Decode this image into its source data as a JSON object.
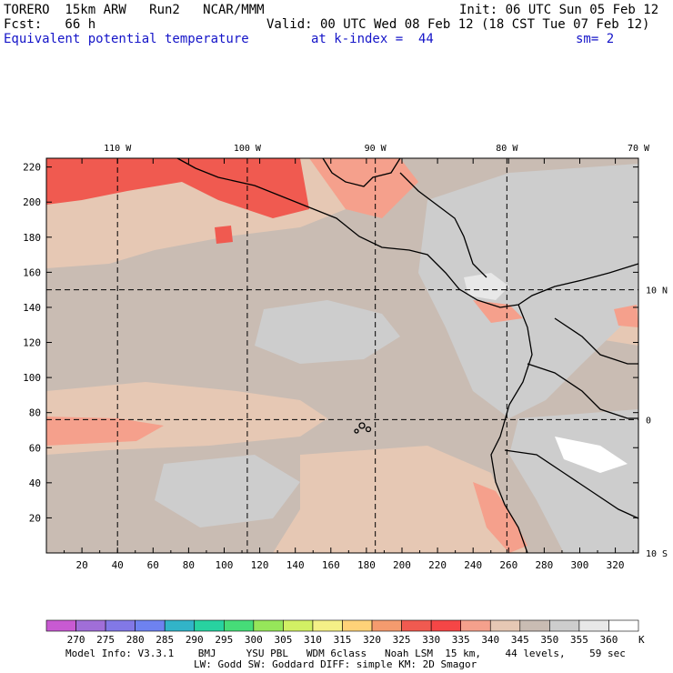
{
  "header": {
    "model_line": "TORERO  15km ARW   Run2   NCAR/MMM",
    "init_line": "Init: 06 UTC Sun 05 Feb 12",
    "fcst_line": "Fcst:   66 h",
    "valid_line": "Valid: 00 UTC Wed 08 Feb 12 (18 CST Tue 07 Feb 12)",
    "field_title": "Equivalent potential temperature",
    "level_text": "at k-index =  44",
    "smoothing_text": "sm= 2"
  },
  "map": {
    "lon_labels": [
      {
        "label": "110 W",
        "grid": 40
      },
      {
        "label": "100 W",
        "grid": 113
      },
      {
        "label": "90 W",
        "grid": 185
      },
      {
        "label": "80 W",
        "grid": 259
      },
      {
        "label": "70 W",
        "grid": 333
      }
    ],
    "lat_labels": [
      {
        "label": "10 N",
        "grid": 150
      },
      {
        "label": "0",
        "grid": 76
      },
      {
        "label": "10 S",
        "grid": 0
      }
    ],
    "x_ticks": [
      20,
      40,
      60,
      80,
      100,
      120,
      140,
      160,
      180,
      200,
      220,
      240,
      260,
      280,
      300,
      320
    ],
    "y_ticks": [
      20,
      40,
      60,
      80,
      100,
      120,
      140,
      160,
      180,
      200,
      220
    ],
    "x_range": [
      0,
      333
    ],
    "y_range": [
      0,
      225
    ],
    "background_color": "#c9bcb3"
  },
  "colorbar": {
    "unit": "K",
    "labels": [
      "270",
      "275",
      "280",
      "285",
      "290",
      "295",
      "300",
      "305",
      "310",
      "315",
      "320",
      "325",
      "330",
      "335",
      "340",
      "345",
      "350",
      "355",
      "360"
    ],
    "colors": [
      "#c85ad2",
      "#a06ed8",
      "#8278e6",
      "#6e82f0",
      "#32b4c8",
      "#28d2a0",
      "#46dc78",
      "#96e65a",
      "#d2f064",
      "#f5f087",
      "#ffd278",
      "#f59b6e",
      "#f05a50",
      "#f54646",
      "#f5a08c",
      "#e6c8b4",
      "#c9bcb3",
      "#cdcdcd",
      "#e8e8e8",
      "#ffffff"
    ]
  },
  "footer": {
    "line1": "Model Info: V3.3.1    BMJ     YSU PBL   WDM 6class   Noah LSM  15 km,    44 levels,    59 sec",
    "line2": "LW: Godd SW: Goddard DIFF: simple KM: 2D Smagor"
  }
}
